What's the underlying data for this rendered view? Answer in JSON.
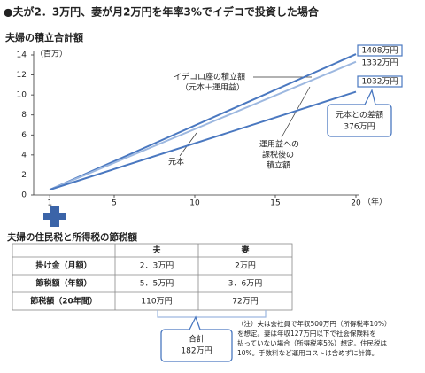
{
  "title": "●夫が2．3万円、妻が月2万円を年率3%でイデコで投資した場合",
  "chart_data": {
    "type": "line",
    "title": "夫婦の積立合計額",
    "y_label": "（百万）",
    "x_label": "（年）",
    "x": [
      1,
      20
    ],
    "xlim": [
      0,
      20
    ],
    "xticks": [
      1,
      5,
      10,
      15,
      20
    ],
    "ylim": [
      0,
      14
    ],
    "yticks": [
      0,
      2,
      4,
      6,
      8,
      10,
      12,
      14
    ],
    "grid": false,
    "series": [
      {
        "name_lines": [
          "イデコロ座の積立額",
          "（元本＋運用益）"
        ],
        "color": "#4a78c0",
        "values": [
          0.52,
          14.08
        ],
        "end_label": "1408万円",
        "boxed": true
      },
      {
        "name_lines": [
          "運用益への",
          "課税後の",
          "積立額"
        ],
        "color": "#9db8e0",
        "values": [
          0.52,
          13.32
        ],
        "end_label": "1332万円",
        "boxed": false
      },
      {
        "name_lines": [
          "元本"
        ],
        "color": "#4a78c0",
        "values": [
          0.52,
          10.32
        ],
        "end_label": "1032万円",
        "boxed": true
      }
    ],
    "annotation": [
      "元本との差額",
      "376万円"
    ]
  },
  "table": {
    "title": "夫婦の住民税と所得税の節税額",
    "header": [
      "夫",
      "妻"
    ],
    "rows": [
      [
        "掛け金（月額）",
        "2．3万円",
        "2万円"
      ],
      [
        "節税額（年額）",
        "5．5万円",
        "3．6万円"
      ],
      [
        "節税額（20年間）",
        "110万円",
        "72万円"
      ]
    ],
    "total": [
      "合計",
      "182万円"
    ],
    "note": [
      "（注）夫は会社員で年収500万円（所得税率10%）",
      "を想定。妻は年収127万円以下で社会保険料を",
      "払っていない場合（所得税率5%）想定。住民税は",
      "10%。手数料など運用コストは含めずに計算。"
    ]
  }
}
